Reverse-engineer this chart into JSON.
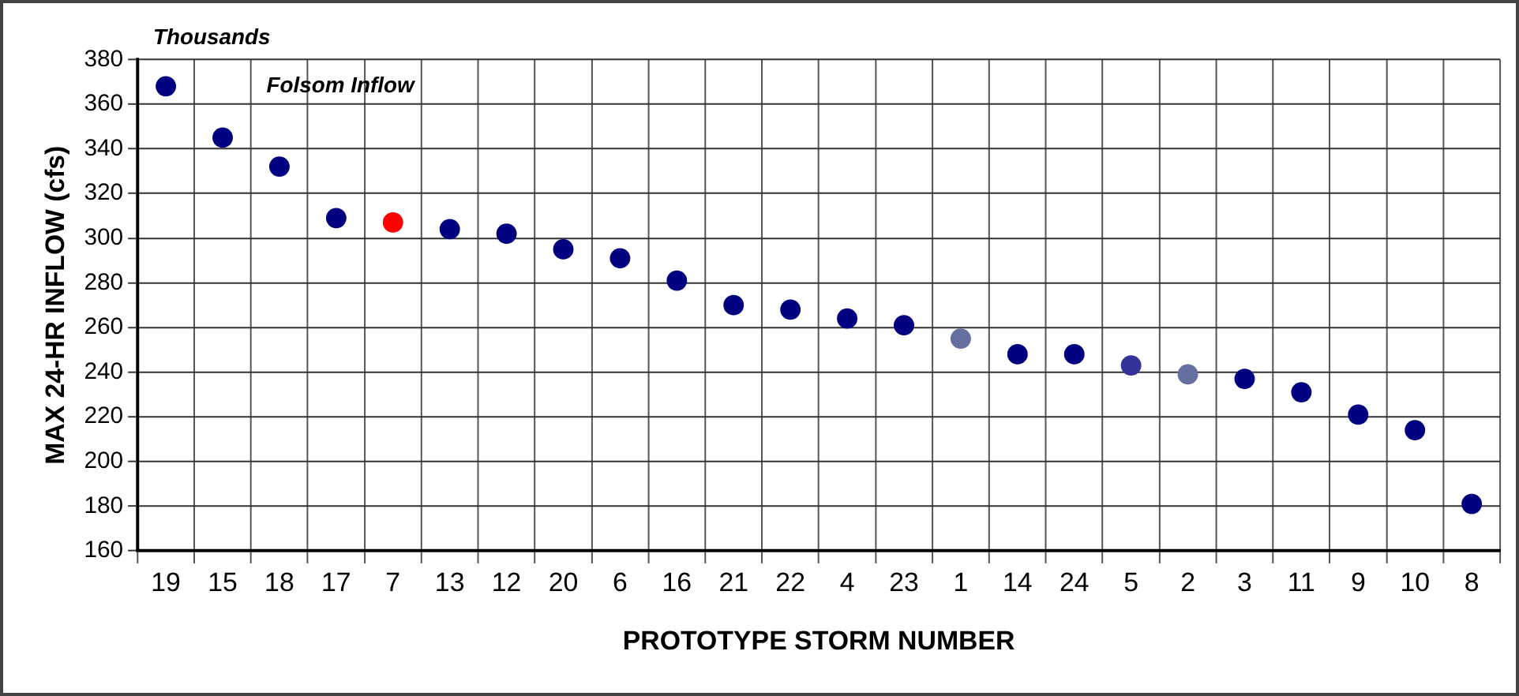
{
  "chart_data": {
    "type": "scatter",
    "xlabel": "PROTOTYPE STORM NUMBER",
    "ylabel": "MAX 24-HR INFLOW (cfs)",
    "annotations": [
      "Thousands",
      "Folsom Inflow"
    ],
    "categories": [
      "19",
      "15",
      "18",
      "17",
      "7",
      "13",
      "12",
      "20",
      "6",
      "16",
      "21",
      "22",
      "4",
      "23",
      "1",
      "14",
      "24",
      "5",
      "2",
      "3",
      "11",
      "9",
      "10",
      "8"
    ],
    "values": [
      368,
      345,
      332,
      309,
      307,
      304,
      302,
      295,
      291,
      281,
      270,
      268,
      264,
      261,
      255,
      248,
      248,
      243,
      239,
      237,
      231,
      221,
      214,
      181
    ],
    "colors": [
      "#000080",
      "#000080",
      "#000080",
      "#000080",
      "#ff0000",
      "#000080",
      "#000080",
      "#000080",
      "#000080",
      "#000080",
      "#000080",
      "#000080",
      "#000080",
      "#000080",
      "#6670a0",
      "#000080",
      "#000080",
      "#333399",
      "#6670a0",
      "#000080",
      "#000080",
      "#000080",
      "#000080",
      "#000080"
    ],
    "ylim": [
      160,
      380
    ],
    "yticks": [
      160,
      180,
      200,
      220,
      240,
      260,
      280,
      300,
      320,
      340,
      360,
      380
    ],
    "grid": true,
    "marker": "circle",
    "legend": false
  }
}
